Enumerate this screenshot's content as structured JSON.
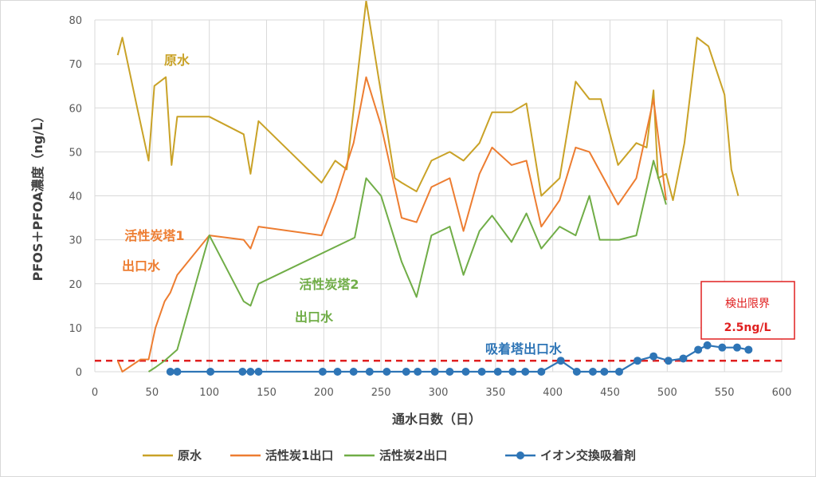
{
  "chart_data": {
    "type": "line",
    "xlabel": "通水日数（日）",
    "ylabel": "PFOS＋PFOA濃度（ng/L）",
    "xlim": [
      0,
      600
    ],
    "ylim": [
      0,
      80
    ],
    "x_ticks": [
      0,
      50,
      100,
      150,
      200,
      250,
      300,
      350,
      400,
      450,
      500,
      550,
      600
    ],
    "y_ticks": [
      0,
      10,
      20,
      30,
      40,
      50,
      60,
      70,
      80
    ],
    "grid": "vertical and horizontal",
    "legend_position": "bottom",
    "detection_limit": {
      "value": 2.5,
      "label_line1": "検出限界",
      "label_line2": "2.5ng/L",
      "color": "#e02020"
    },
    "series": [
      {
        "name": "原水",
        "color": "#c9a227",
        "label_lines": [
          "原水"
        ],
        "points": [
          [
            20,
            72
          ],
          [
            24,
            76
          ],
          [
            37,
            60
          ],
          [
            47,
            48
          ],
          [
            52,
            65
          ],
          [
            62,
            67
          ],
          [
            67,
            47
          ],
          [
            72,
            58
          ],
          [
            100,
            58
          ],
          [
            130,
            54
          ],
          [
            136,
            45
          ],
          [
            143,
            57
          ],
          [
            198,
            43
          ],
          [
            210,
            48
          ],
          [
            220,
            46
          ],
          [
            237,
            85
          ],
          [
            262,
            44
          ],
          [
            268,
            43
          ],
          [
            281,
            41
          ],
          [
            294,
            48
          ],
          [
            310,
            50
          ],
          [
            322,
            48
          ],
          [
            336,
            52
          ],
          [
            347,
            59
          ],
          [
            364,
            59
          ],
          [
            377,
            61
          ],
          [
            390,
            40
          ],
          [
            406,
            44
          ],
          [
            420,
            66
          ],
          [
            432,
            62
          ],
          [
            442,
            62
          ],
          [
            457,
            47
          ],
          [
            473,
            52
          ],
          [
            482,
            51
          ],
          [
            488,
            64
          ],
          [
            492,
            44
          ],
          [
            499,
            45
          ],
          [
            505,
            39
          ],
          [
            515,
            52
          ],
          [
            526,
            76
          ],
          [
            536,
            74
          ],
          [
            550,
            63
          ],
          [
            556,
            46
          ],
          [
            562,
            40
          ]
        ]
      },
      {
        "name": "活性炭1出口",
        "color": "#ed7d31",
        "label_lines": [
          "活性炭塔1",
          "出口水"
        ],
        "points": [
          [
            20,
            2.5
          ],
          [
            24,
            0
          ],
          [
            40,
            2.8
          ],
          [
            47,
            2.8
          ],
          [
            53,
            10
          ],
          [
            61,
            16
          ],
          [
            66,
            18
          ],
          [
            72,
            22
          ],
          [
            100,
            31
          ],
          [
            130,
            30
          ],
          [
            136,
            28
          ],
          [
            143,
            33
          ],
          [
            198,
            31
          ],
          [
            210,
            39
          ],
          [
            226,
            52
          ],
          [
            237,
            67
          ],
          [
            250,
            56
          ],
          [
            268,
            35
          ],
          [
            281,
            34
          ],
          [
            294,
            42
          ],
          [
            310,
            44
          ],
          [
            322,
            32
          ],
          [
            336,
            45
          ],
          [
            347,
            51
          ],
          [
            364,
            47
          ],
          [
            377,
            48
          ],
          [
            390,
            33
          ],
          [
            406,
            39
          ],
          [
            420,
            51
          ],
          [
            432,
            50
          ],
          [
            457,
            38
          ],
          [
            473,
            44
          ],
          [
            488,
            62
          ],
          [
            499,
            39
          ]
        ]
      },
      {
        "name": "活性炭2出口",
        "color": "#70ad47",
        "label_lines": [
          "活性炭塔2",
          "出口水"
        ],
        "points": [
          [
            47,
            0
          ],
          [
            53,
            1
          ],
          [
            61,
            2.5
          ],
          [
            72,
            5
          ],
          [
            100,
            31
          ],
          [
            130,
            16
          ],
          [
            136,
            15
          ],
          [
            143,
            20
          ],
          [
            227,
            30.5
          ],
          [
            237,
            44
          ],
          [
            250,
            40
          ],
          [
            268,
            25
          ],
          [
            281,
            17
          ],
          [
            294,
            31
          ],
          [
            310,
            33
          ],
          [
            322,
            22
          ],
          [
            336,
            32
          ],
          [
            347,
            35.5
          ],
          [
            364,
            29.5
          ],
          [
            377,
            36
          ],
          [
            390,
            28
          ],
          [
            406,
            33
          ],
          [
            420,
            31
          ],
          [
            432,
            40
          ],
          [
            441,
            30
          ],
          [
            458,
            30
          ],
          [
            473,
            31
          ],
          [
            488,
            48
          ],
          [
            499,
            38
          ]
        ]
      },
      {
        "name": "イオン交換吸着剤",
        "color": "#2e75b6",
        "label_lines": [
          "吸着塔出口水"
        ],
        "points": [
          [
            66,
            0
          ],
          [
            72,
            0
          ],
          [
            101,
            0
          ],
          [
            129,
            0
          ],
          [
            136,
            0
          ],
          [
            143,
            0
          ],
          [
            199,
            0
          ],
          [
            212,
            0
          ],
          [
            226,
            0
          ],
          [
            240,
            0
          ],
          [
            255,
            0
          ],
          [
            272,
            0
          ],
          [
            282,
            0
          ],
          [
            297,
            0
          ],
          [
            310,
            0
          ],
          [
            324,
            0
          ],
          [
            338,
            0
          ],
          [
            352,
            0
          ],
          [
            365,
            0
          ],
          [
            376,
            0
          ],
          [
            390,
            0
          ],
          [
            407,
            2.5
          ],
          [
            421,
            0
          ],
          [
            435,
            0
          ],
          [
            445,
            0
          ],
          [
            458,
            0
          ],
          [
            474,
            2.5
          ],
          [
            488,
            3.5
          ],
          [
            501,
            2.5
          ],
          [
            514,
            3
          ],
          [
            527,
            5
          ],
          [
            535,
            6
          ],
          [
            548,
            5.5
          ],
          [
            561,
            5.5
          ],
          [
            571,
            5
          ]
        ]
      }
    ]
  }
}
